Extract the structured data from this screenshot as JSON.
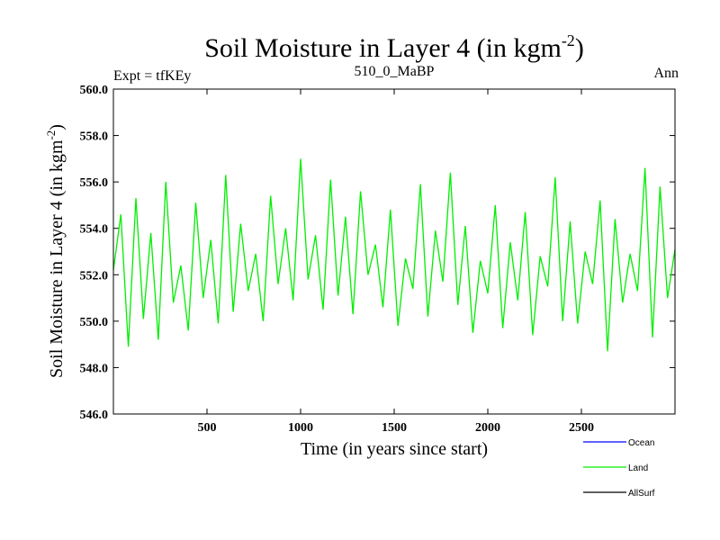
{
  "chart_data": {
    "type": "line",
    "title": "Soil Moisture in Layer 4 (in kgm",
    "title_superscript": "-2",
    "title_suffix": ")",
    "subtitle_left": "Expt = tfKEy",
    "subtitle_center": "510_0_MaBP",
    "subtitle_right": "Ann",
    "xlabel": "Time (in years since start)",
    "ylabel": "Soil Moisture in Layer 4 (in kgm",
    "ylabel_superscript": "-2",
    "ylabel_suffix": ")",
    "xlim": [
      0,
      3000
    ],
    "ylim": [
      546.0,
      560.0
    ],
    "xticks": [
      500,
      1000,
      1500,
      2000,
      2500
    ],
    "xtick_labels": [
      "500",
      "1000",
      "1500",
      "2000",
      "2500"
    ],
    "yticks": [
      546.0,
      548.0,
      550.0,
      552.0,
      554.0,
      556.0,
      558.0,
      560.0
    ],
    "ytick_labels": [
      "546.0",
      "548.0",
      "550.0",
      "552.0",
      "554.0",
      "556.0",
      "558.0",
      "560.0"
    ],
    "legend_position": "bottom-right",
    "series": [
      {
        "name": "Ocean",
        "color": "#0000ff",
        "x": [],
        "y": []
      },
      {
        "name": "Land",
        "color": "#00ee00",
        "x": [
          0,
          40,
          80,
          120,
          160,
          200,
          240,
          280,
          320,
          360,
          400,
          440,
          480,
          520,
          560,
          600,
          640,
          680,
          720,
          760,
          800,
          840,
          880,
          920,
          960,
          1000,
          1040,
          1080,
          1120,
          1160,
          1200,
          1240,
          1280,
          1320,
          1360,
          1400,
          1440,
          1480,
          1520,
          1560,
          1600,
          1640,
          1680,
          1720,
          1760,
          1800,
          1840,
          1880,
          1920,
          1960,
          2000,
          2040,
          2080,
          2120,
          2160,
          2200,
          2240,
          2280,
          2320,
          2360,
          2400,
          2440,
          2480,
          2520,
          2560,
          2600,
          2640,
          2680,
          2720,
          2760,
          2800,
          2840,
          2880,
          2920,
          2960,
          3000
        ],
        "y": [
          552.2,
          554.6,
          548.9,
          555.3,
          550.1,
          553.8,
          549.2,
          556.0,
          550.8,
          552.4,
          549.6,
          555.1,
          551.0,
          553.5,
          549.9,
          556.3,
          550.4,
          554.2,
          551.3,
          552.9,
          550.0,
          555.4,
          551.6,
          554.0,
          550.9,
          557.0,
          551.8,
          553.7,
          550.5,
          556.1,
          551.1,
          554.5,
          550.3,
          555.6,
          552.0,
          553.3,
          550.6,
          554.8,
          549.8,
          552.7,
          551.4,
          555.9,
          550.2,
          553.9,
          551.7,
          556.4,
          550.7,
          554.1,
          549.5,
          552.6,
          551.2,
          555.0,
          549.7,
          553.4,
          550.9,
          554.7,
          549.4,
          552.8,
          551.5,
          556.2,
          550.0,
          554.3,
          549.9,
          553.0,
          551.6,
          555.2,
          548.7,
          554.4,
          550.8,
          552.9,
          551.3,
          556.6,
          549.3,
          555.8,
          551.0,
          553.1
        ]
      },
      {
        "name": "AllSurf",
        "color": "#000000",
        "x": [],
        "y": []
      }
    ]
  }
}
